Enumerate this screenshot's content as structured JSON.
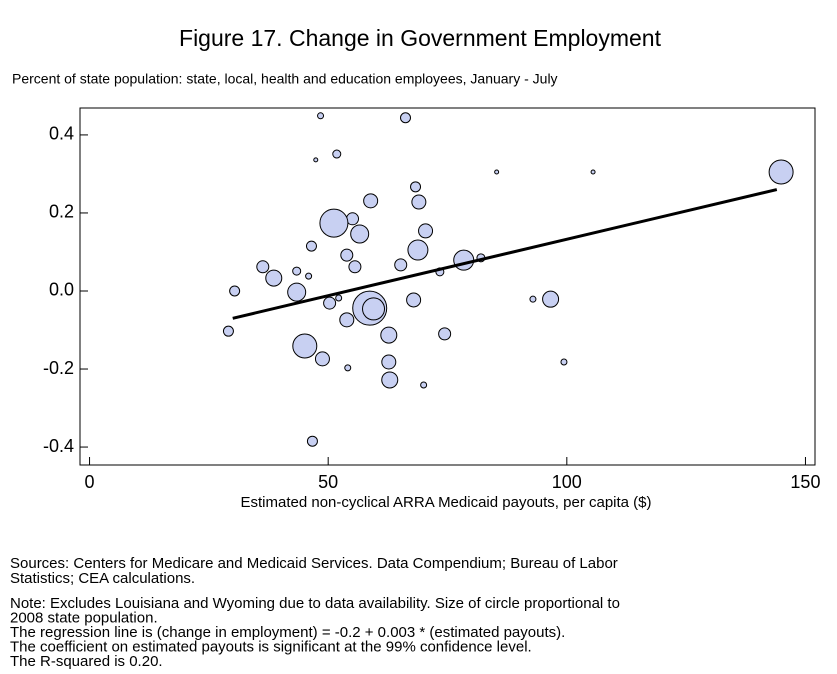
{
  "chart_data": {
    "type": "scatter",
    "title": "Figure 17. Change in Government Employment",
    "subtitle": "Percent of state population: state, local, health and education employees, January - July",
    "xlabel": "Estimated non-cyclical ARRA Medicaid payouts, per capita ($)",
    "xlim": [
      -2,
      152
    ],
    "xticks": [
      0,
      50,
      100,
      150
    ],
    "ylim": [
      -0.446,
      0.469
    ],
    "yticks": [
      {
        "value": -0.4,
        "label": "-0.4"
      },
      {
        "value": -0.2,
        "label": "-0.2"
      },
      {
        "value": 0,
        "label": "0.0"
      },
      {
        "value": 0.2,
        "label": "0.2"
      },
      {
        "value": 0.4,
        "label": "0.4"
      }
    ],
    "color": "#c8d0f2",
    "x": [
      48.4,
      66.2,
      47.4,
      51.8,
      68.3,
      85.3,
      105.5,
      144.9,
      58.9,
      69.0,
      55.1,
      51.2,
      56.6,
      70.4,
      46.5,
      68.8,
      53.9,
      36.3,
      38.6,
      30.4,
      43.4,
      45.9,
      55.6,
      65.2,
      73.4,
      78.4,
      82.0,
      43.4,
      50.3,
      52.2,
      58.7,
      59.5,
      53.9,
      67.9,
      92.9,
      96.6,
      29.1,
      62.7,
      74.4,
      45.1,
      48.8,
      54.1,
      62.7,
      62.9,
      70.0,
      99.4,
      46.7
    ],
    "y": [
      0.449,
      0.444,
      0.336,
      0.351,
      0.267,
      0.305,
      0.305,
      0.305,
      0.231,
      0.228,
      0.185,
      0.174,
      0.146,
      0.154,
      0.115,
      0.105,
      0.092,
      0.062,
      0.033,
      0.0,
      0.051,
      0.038,
      0.062,
      0.067,
      0.049,
      0.079,
      0.085,
      -0.003,
      -0.031,
      -0.018,
      -0.044,
      -0.046,
      -0.074,
      -0.023,
      -0.021,
      -0.021,
      -0.103,
      -0.113,
      -0.11,
      -0.141,
      -0.174,
      -0.197,
      -0.182,
      -0.228,
      -0.241,
      -0.182,
      -0.385
    ],
    "sizes": [
      3,
      5,
      2,
      4,
      5,
      2,
      2,
      12,
      7,
      7,
      6,
      14,
      9,
      7,
      5,
      10,
      6,
      6,
      8,
      5,
      4,
      3,
      6,
      6,
      4,
      10,
      4,
      9,
      6,
      3,
      17,
      11,
      7,
      7,
      3,
      8,
      5,
      8,
      6,
      12,
      7,
      3,
      7,
      8,
      3,
      3,
      5
    ],
    "trend_line": {
      "x": [
        30,
        144
      ],
      "y": [
        -0.07,
        0.26
      ]
    },
    "sources": [
      "Sources: Centers for Medicare and Medicaid Services. Data Compendium; Bureau of Labor",
      "Statistics; CEA calculations."
    ],
    "notes": [
      "Note: Excludes Louisiana and Wyoming due to data availability. Size of circle proportional to",
      "2008 state population.",
      "The regression line is (change in employment)  =  -0.2  +  0.003 * (estimated payouts).",
      "The coefficient on estimated payouts is significant at the 99% confidence level.",
      "The R-squared is  0.20."
    ]
  }
}
